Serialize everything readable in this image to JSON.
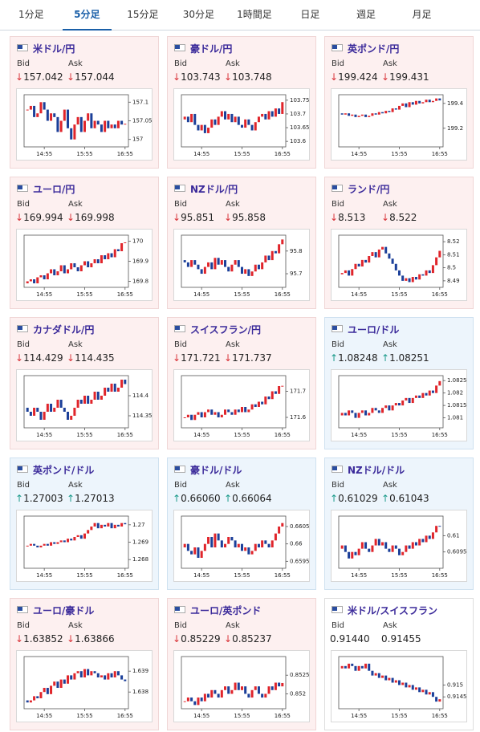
{
  "tabs": {
    "items": [
      "1分足",
      "5分足",
      "15分足",
      "30分足",
      "1時間足",
      "日足",
      "週足",
      "月足"
    ],
    "active": 1
  },
  "labels": {
    "bid": "Bid",
    "ask": "Ask",
    "up": "↑",
    "down": "↓"
  },
  "cards": [
    {
      "title": "米ドル/円",
      "trend": "down",
      "bid": "157.042",
      "ask": "157.044",
      "chart": {
        "type": "candlestick",
        "open": 157.08,
        "closes": [
          157.08,
          157.09,
          157.06,
          157.07,
          157.1,
          157.08,
          157.05,
          157.07,
          157.06,
          157.02,
          157.05,
          157.08,
          157.03,
          157.0,
          157.04,
          157.06,
          157.02,
          157.05,
          157.07,
          157.03,
          157.05,
          157.04,
          157.02,
          157.05,
          157.03,
          157.04,
          157.03,
          157.05,
          157.04,
          157.042
        ],
        "xlim": [
          -1,
          30
        ],
        "xticks": [
          {
            "value": 5,
            "label": "14:55"
          },
          {
            "value": 17,
            "label": "15:55"
          },
          {
            "value": 29,
            "label": "16:55"
          }
        ],
        "ylim": [
          156.98,
          157.12
        ],
        "yticks": [
          157,
          157.05,
          157.1
        ]
      }
    },
    {
      "title": "豪ドル/円",
      "trend": "down",
      "bid": "103.743",
      "ask": "103.748",
      "chart": {
        "type": "candlestick",
        "open": 103.68,
        "closes": [
          103.69,
          103.67,
          103.7,
          103.66,
          103.64,
          103.66,
          103.63,
          103.65,
          103.68,
          103.66,
          103.69,
          103.71,
          103.68,
          103.7,
          103.67,
          103.69,
          103.66,
          103.65,
          103.68,
          103.66,
          103.64,
          103.67,
          103.69,
          103.7,
          103.68,
          103.71,
          103.69,
          103.72,
          103.7,
          103.743
        ],
        "xlim": [
          -1,
          30
        ],
        "xticks": [
          {
            "value": 5,
            "label": "14:55"
          },
          {
            "value": 17,
            "label": "15:55"
          },
          {
            "value": 29,
            "label": "16:55"
          }
        ],
        "ylim": [
          103.58,
          103.77
        ],
        "yticks": [
          103.6,
          103.65,
          103.7,
          103.75
        ]
      }
    },
    {
      "title": "英ポンド/円",
      "trend": "down",
      "bid": "199.424",
      "ask": "199.431",
      "chart": {
        "type": "candlestick",
        "open": 199.32,
        "closes": [
          199.31,
          199.32,
          199.3,
          199.31,
          199.29,
          199.3,
          199.31,
          199.29,
          199.3,
          199.32,
          199.31,
          199.33,
          199.32,
          199.34,
          199.33,
          199.36,
          199.35,
          199.38,
          199.4,
          199.37,
          199.41,
          199.39,
          199.42,
          199.4,
          199.41,
          199.43,
          199.41,
          199.42,
          199.44,
          199.424
        ],
        "xlim": [
          -1,
          30
        ],
        "xticks": [
          {
            "value": 5,
            "label": "14:55"
          },
          {
            "value": 17,
            "label": "15:55"
          },
          {
            "value": 29,
            "label": "16:55"
          }
        ],
        "ylim": [
          199.05,
          199.47
        ],
        "yticks": [
          199.2,
          199.4
        ]
      }
    },
    {
      "title": "ユーロ/円",
      "trend": "down",
      "bid": "169.994",
      "ask": "169.998",
      "chart": {
        "type": "candlestick",
        "open": 169.79,
        "closes": [
          169.8,
          169.81,
          169.79,
          169.82,
          169.83,
          169.81,
          169.84,
          169.86,
          169.83,
          169.85,
          169.88,
          169.84,
          169.86,
          169.89,
          169.87,
          169.85,
          169.88,
          169.9,
          169.87,
          169.89,
          169.91,
          169.89,
          169.93,
          169.91,
          169.94,
          169.92,
          169.96,
          169.95,
          169.99,
          169.994
        ],
        "xlim": [
          -1,
          30
        ],
        "xticks": [
          {
            "value": 5,
            "label": "14:55"
          },
          {
            "value": 17,
            "label": "15:55"
          },
          {
            "value": 29,
            "label": "16:55"
          }
        ],
        "ylim": [
          169.77,
          170.03
        ],
        "yticks": [
          169.8,
          169.9,
          170
        ]
      }
    },
    {
      "title": "NZドル/円",
      "trend": "down",
      "bid": "95.851",
      "ask": "95.858",
      "chart": {
        "type": "candlestick",
        "open": 95.76,
        "closes": [
          95.75,
          95.73,
          95.76,
          95.74,
          95.72,
          95.7,
          95.73,
          95.75,
          95.72,
          95.77,
          95.74,
          95.76,
          95.73,
          95.71,
          95.74,
          95.76,
          95.73,
          95.7,
          95.72,
          95.69,
          95.71,
          95.74,
          95.72,
          95.75,
          95.78,
          95.76,
          95.8,
          95.79,
          95.83,
          95.851
        ],
        "xlim": [
          -1,
          30
        ],
        "xticks": [
          {
            "value": 5,
            "label": "14:55"
          },
          {
            "value": 17,
            "label": "15:55"
          },
          {
            "value": 29,
            "label": "16:55"
          }
        ],
        "ylim": [
          95.64,
          95.87
        ],
        "yticks": [
          95.7,
          95.8
        ]
      }
    },
    {
      "title": "ランド/円",
      "trend": "down",
      "bid": "8.513",
      "ask": "8.522",
      "chart": {
        "type": "candlestick",
        "open": 8.495,
        "closes": [
          8.496,
          8.498,
          8.494,
          8.499,
          8.503,
          8.501,
          8.506,
          8.504,
          8.509,
          8.512,
          8.508,
          8.514,
          8.516,
          8.511,
          8.507,
          8.503,
          8.498,
          8.494,
          8.49,
          8.492,
          8.489,
          8.493,
          8.491,
          8.495,
          8.494,
          8.498,
          8.496,
          8.502,
          8.508,
          8.513
        ],
        "xlim": [
          -1,
          30
        ],
        "xticks": [
          {
            "value": 5,
            "label": "14:55"
          },
          {
            "value": 17,
            "label": "15:55"
          },
          {
            "value": 29,
            "label": "16:55"
          }
        ],
        "ylim": [
          8.485,
          8.525
        ],
        "yticks": [
          8.49,
          8.5,
          8.51,
          8.52
        ]
      }
    },
    {
      "title": "カナダドル/円",
      "trend": "down",
      "bid": "114.429",
      "ask": "114.435",
      "chart": {
        "type": "candlestick",
        "open": 114.37,
        "closes": [
          114.36,
          114.35,
          114.37,
          114.36,
          114.34,
          114.36,
          114.38,
          114.36,
          114.37,
          114.39,
          114.37,
          114.36,
          114.34,
          114.35,
          114.37,
          114.39,
          114.38,
          114.4,
          114.38,
          114.39,
          114.41,
          114.39,
          114.4,
          114.42,
          114.41,
          114.43,
          114.41,
          114.42,
          114.44,
          114.429
        ],
        "xlim": [
          -1,
          30
        ],
        "xticks": [
          {
            "value": 5,
            "label": "14:55"
          },
          {
            "value": 17,
            "label": "15:55"
          },
          {
            "value": 29,
            "label": "16:55"
          }
        ],
        "ylim": [
          114.32,
          114.45
        ],
        "yticks": [
          114.35,
          114.4
        ]
      }
    },
    {
      "title": "スイスフラン/円",
      "trend": "down",
      "bid": "171.721",
      "ask": "171.737",
      "chart": {
        "type": "candlestick",
        "open": 171.6,
        "closes": [
          171.6,
          171.61,
          171.59,
          171.61,
          171.62,
          171.6,
          171.62,
          171.63,
          171.61,
          171.62,
          171.6,
          171.61,
          171.63,
          171.62,
          171.61,
          171.63,
          171.62,
          171.64,
          171.62,
          171.63,
          171.65,
          171.64,
          171.66,
          171.65,
          171.68,
          171.67,
          171.7,
          171.69,
          171.72,
          171.721
        ],
        "xlim": [
          -1,
          30
        ],
        "xticks": [
          {
            "value": 5,
            "label": "14:55"
          },
          {
            "value": 17,
            "label": "15:55"
          },
          {
            "value": 29,
            "label": "16:55"
          }
        ],
        "ylim": [
          171.56,
          171.76
        ],
        "yticks": [
          171.6,
          171.7
        ]
      }
    },
    {
      "title": "ユーロ/ドル",
      "trend": "up",
      "bid": "1.08248",
      "ask": "1.08251",
      "chart": {
        "type": "candlestick",
        "open": 1.0811,
        "closes": [
          1.0812,
          1.0811,
          1.0813,
          1.0812,
          1.081,
          1.0812,
          1.0813,
          1.0811,
          1.0812,
          1.0814,
          1.0813,
          1.0812,
          1.0814,
          1.0815,
          1.0813,
          1.0815,
          1.0816,
          1.0815,
          1.0817,
          1.0818,
          1.0816,
          1.0818,
          1.0819,
          1.0818,
          1.082,
          1.0819,
          1.0821,
          1.082,
          1.0823,
          1.08248
        ],
        "xlim": [
          -1,
          30
        ],
        "xticks": [
          {
            "value": 5,
            "label": "14:55"
          },
          {
            "value": 17,
            "label": "15:55"
          },
          {
            "value": 29,
            "label": "16:55"
          }
        ],
        "ylim": [
          1.0806,
          1.0827
        ],
        "yticks": [
          1.081,
          1.0815,
          1.082,
          1.0825
        ]
      }
    },
    {
      "title": "英ポンド/ドル",
      "trend": "up",
      "bid": "1.27003",
      "ask": "1.27013",
      "chart": {
        "type": "candlestick",
        "open": 1.2688,
        "closes": [
          1.2688,
          1.2689,
          1.2688,
          1.2687,
          1.2688,
          1.2689,
          1.2688,
          1.269,
          1.2689,
          1.269,
          1.2691,
          1.269,
          1.2692,
          1.2691,
          1.2693,
          1.2694,
          1.2692,
          1.2695,
          1.2697,
          1.2699,
          1.2701,
          1.2698,
          1.27,
          1.2699,
          1.2701,
          1.2698,
          1.27,
          1.2699,
          1.2701,
          1.27003
        ],
        "xlim": [
          -1,
          30
        ],
        "xticks": [
          {
            "value": 5,
            "label": "14:55"
          },
          {
            "value": 17,
            "label": "15:55"
          },
          {
            "value": 29,
            "label": "16:55"
          }
        ],
        "ylim": [
          1.2675,
          1.2705
        ],
        "yticks": [
          1.268,
          1.269,
          1.27
        ]
      }
    },
    {
      "title": "豪ドル/ドル",
      "trend": "up",
      "bid": "0.66060",
      "ask": "0.66064",
      "chart": {
        "type": "candlestick",
        "open": 0.6599,
        "closes": [
          0.66,
          0.6598,
          0.6597,
          0.6599,
          0.6596,
          0.6598,
          0.66,
          0.6602,
          0.6599,
          0.6603,
          0.6601,
          0.6599,
          0.66,
          0.6602,
          0.6601,
          0.6599,
          0.66,
          0.6598,
          0.6599,
          0.6597,
          0.6598,
          0.66,
          0.6599,
          0.6601,
          0.66,
          0.6599,
          0.6601,
          0.6603,
          0.6605,
          0.6606
        ],
        "xlim": [
          -1,
          30
        ],
        "xticks": [
          {
            "value": 5,
            "label": "14:55"
          },
          {
            "value": 17,
            "label": "15:55"
          },
          {
            "value": 29,
            "label": "16:55"
          }
        ],
        "ylim": [
          0.6593,
          0.6608
        ],
        "yticks": [
          0.6595,
          0.66,
          0.6605
        ]
      }
    },
    {
      "title": "NZドル/ドル",
      "trend": "up",
      "bid": "0.61029",
      "ask": "0.61043",
      "chart": {
        "type": "candlestick",
        "open": 0.6096,
        "closes": [
          0.6097,
          0.6095,
          0.6093,
          0.6095,
          0.6094,
          0.6096,
          0.6098,
          0.6096,
          0.6095,
          0.6097,
          0.6099,
          0.6097,
          0.6098,
          0.6096,
          0.6095,
          0.6097,
          0.6096,
          0.6094,
          0.6095,
          0.6097,
          0.6096,
          0.6098,
          0.6097,
          0.6099,
          0.6098,
          0.61,
          0.6099,
          0.6101,
          0.6103,
          0.61029
        ],
        "xlim": [
          -1,
          30
        ],
        "xticks": [
          {
            "value": 5,
            "label": "14:55"
          },
          {
            "value": 17,
            "label": "15:55"
          },
          {
            "value": 29,
            "label": "16:55"
          }
        ],
        "ylim": [
          0.609,
          0.6106
        ],
        "yticks": [
          0.6095,
          0.61
        ]
      }
    },
    {
      "title": "ユーロ/豪ドル",
      "trend": "down",
      "bid": "1.63852",
      "ask": "1.63866",
      "chart": {
        "type": "candlestick",
        "open": 1.6376,
        "closes": [
          1.6375,
          1.6376,
          1.6378,
          1.6377,
          1.638,
          1.6382,
          1.6379,
          1.6383,
          1.6385,
          1.6382,
          1.6386,
          1.6384,
          1.6388,
          1.6386,
          1.6389,
          1.639,
          1.6387,
          1.6391,
          1.6388,
          1.639,
          1.6389,
          1.6387,
          1.6388,
          1.6386,
          1.6389,
          1.6387,
          1.639,
          1.6388,
          1.6386,
          1.63852
        ],
        "xlim": [
          -1,
          30
        ],
        "xticks": [
          {
            "value": 5,
            "label": "14:55"
          },
          {
            "value": 17,
            "label": "15:55"
          },
          {
            "value": 29,
            "label": "16:55"
          }
        ],
        "ylim": [
          1.6372,
          1.6397
        ],
        "yticks": [
          1.638,
          1.639
        ]
      }
    },
    {
      "title": "ユーロ/英ポンド",
      "trend": "down",
      "bid": "0.85229",
      "ask": "0.85237",
      "chart": {
        "type": "candlestick",
        "open": 0.8518,
        "closes": [
          0.8518,
          0.8519,
          0.8518,
          0.8517,
          0.8519,
          0.8518,
          0.852,
          0.8519,
          0.8521,
          0.852,
          0.8519,
          0.8521,
          0.8522,
          0.852,
          0.8521,
          0.8523,
          0.8521,
          0.8522,
          0.852,
          0.8519,
          0.8521,
          0.8522,
          0.852,
          0.8519,
          0.852,
          0.8522,
          0.8521,
          0.8523,
          0.8522,
          0.85229
        ],
        "xlim": [
          -1,
          30
        ],
        "xticks": [
          {
            "value": 5,
            "label": "14:55"
          },
          {
            "value": 17,
            "label": "15:55"
          },
          {
            "value": 29,
            "label": "16:55"
          }
        ],
        "ylim": [
          0.8516,
          0.853
        ],
        "yticks": [
          0.852,
          0.8525
        ]
      }
    },
    {
      "title": "米ドル/スイスフラン",
      "trend": "flat",
      "bid": "0.91440",
      "ask": "0.91455",
      "chart": {
        "type": "candlestick",
        "open": 0.9157,
        "closes": [
          0.9158,
          0.9157,
          0.9159,
          0.9158,
          0.9156,
          0.9158,
          0.9157,
          0.9159,
          0.9156,
          0.9154,
          0.9155,
          0.9153,
          0.9154,
          0.9152,
          0.9153,
          0.9151,
          0.9152,
          0.915,
          0.9151,
          0.9149,
          0.915,
          0.9148,
          0.9149,
          0.9147,
          0.9148,
          0.9146,
          0.9147,
          0.9145,
          0.9143,
          0.9144
        ],
        "xlim": [
          -1,
          30
        ],
        "xticks": [
          {
            "value": 5,
            "label": "14:55"
          },
          {
            "value": 17,
            "label": "15:55"
          },
          {
            "value": 29,
            "label": "16:55"
          }
        ],
        "ylim": [
          0.914,
          0.9162
        ],
        "yticks": [
          0.9145,
          0.915
        ]
      }
    }
  ]
}
